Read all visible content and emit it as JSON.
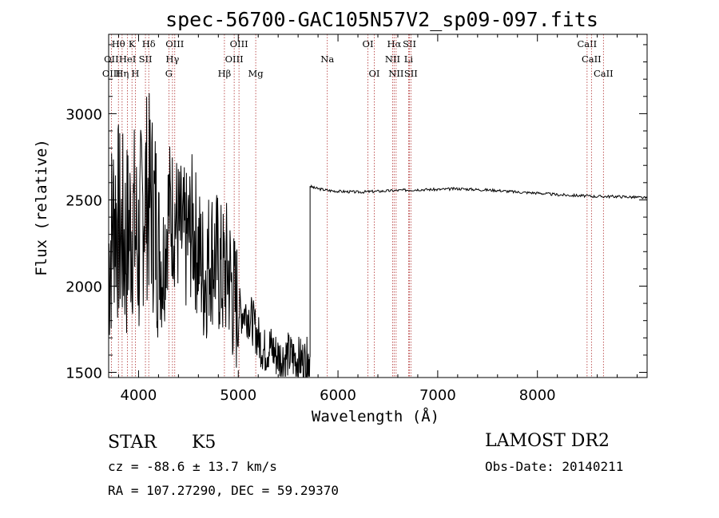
{
  "chart_data": {
    "type": "line",
    "title": "spec-56700-GAC105N57V2_sp09-097.fits",
    "xlabel": "Wavelength (Å)",
    "ylabel": "Flux (relative)",
    "xlim": [
      3700,
      9100
    ],
    "ylim": [
      1470,
      3460
    ],
    "x_ticks": [
      4000,
      5000,
      6000,
      7000,
      8000
    ],
    "y_ticks": [
      1500,
      2000,
      2500,
      3000
    ],
    "x_tick_labels": [
      "4000",
      "5000",
      "6000",
      "7000",
      "8000"
    ],
    "y_tick_labels": [
      "1500",
      "2000",
      "2500",
      "3000"
    ],
    "grid": false,
    "series": [
      {
        "style": "noisy-blue-region",
        "x": [
          3700,
          3760,
          3820,
          3880,
          3940,
          4000,
          4060,
          4120,
          4180,
          4240,
          4300,
          4360,
          4420,
          4480,
          4540,
          4600,
          4660,
          4720,
          4780,
          4840,
          4900,
          4960,
          5020,
          5080,
          5140,
          5200,
          5260,
          5320,
          5380,
          5440,
          5500,
          5560,
          5620,
          5680,
          5720
        ],
        "y": [
          2150,
          2450,
          2300,
          2250,
          2400,
          2200,
          2550,
          2500,
          2350,
          2100,
          2450,
          2400,
          2300,
          2250,
          2350,
          2200,
          2050,
          2200,
          2150,
          2050,
          2100,
          1900,
          1850,
          1850,
          1800,
          1700,
          1620,
          1650,
          1600,
          1580,
          1600,
          1580,
          1570,
          1560,
          1590
        ]
      },
      {
        "style": "continuum",
        "x": [
          5720,
          5760,
          5800,
          5900,
          6000,
          6200,
          6400,
          6600,
          6800,
          7000,
          7200,
          7400,
          7600,
          7800,
          8000,
          8200,
          8400,
          8600,
          8800,
          9000,
          9100
        ],
        "y": [
          2580,
          2570,
          2565,
          2555,
          2550,
          2545,
          2550,
          2555,
          2560,
          2560,
          2565,
          2560,
          2555,
          2545,
          2540,
          2530,
          2525,
          2520,
          2520,
          2515,
          2510
        ]
      }
    ],
    "lines_top": [
      {
        "label": "Hθ",
        "x": 3798
      },
      {
        "label": "K",
        "x": 3934
      },
      {
        "label": "Hδ",
        "x": 4102
      },
      {
        "label": "OIII",
        "x": 4363
      },
      {
        "label": "OIII",
        "x": 5007
      },
      {
        "label": "OI",
        "x": 6300
      },
      {
        "label": "Hα",
        "x": 6563
      },
      {
        "label": "SII",
        "x": 6717
      },
      {
        "label": "CaII",
        "x": 8498
      }
    ],
    "lines_mid": [
      {
        "label": "OII",
        "x": 3727
      },
      {
        "label": "HeI",
        "x": 3889
      },
      {
        "label": "SII",
        "x": 4069
      },
      {
        "label": "Hγ",
        "x": 4340
      },
      {
        "label": "OIII",
        "x": 4959
      },
      {
        "label": "Na",
        "x": 5893
      },
      {
        "label": "NII",
        "x": 6548
      },
      {
        "label": "Li",
        "x": 6708
      },
      {
        "label": "CaII",
        "x": 8542
      }
    ],
    "lines_bot": [
      {
        "label": "OIII",
        "x": 3727
      },
      {
        "label": "Hη",
        "x": 3835
      },
      {
        "label": "H",
        "x": 3968
      },
      {
        "label": "G",
        "x": 4304
      },
      {
        "label": "Hβ",
        "x": 4861
      },
      {
        "label": "Mg",
        "x": 5175
      },
      {
        "label": "OI",
        "x": 6364
      },
      {
        "label": "NII",
        "x": 6583
      },
      {
        "label": "SII",
        "x": 6731
      },
      {
        "label": "CaII",
        "x": 8662
      }
    ]
  },
  "footer": {
    "class_label": "STAR",
    "subclass": "K5",
    "survey": "LAMOST DR2",
    "cz": "cz = -88.6 ± 13.7 km/s",
    "obs_date": "Obs-Date: 20140211",
    "coords": "RA = 107.27290, DEC =  59.29370"
  }
}
